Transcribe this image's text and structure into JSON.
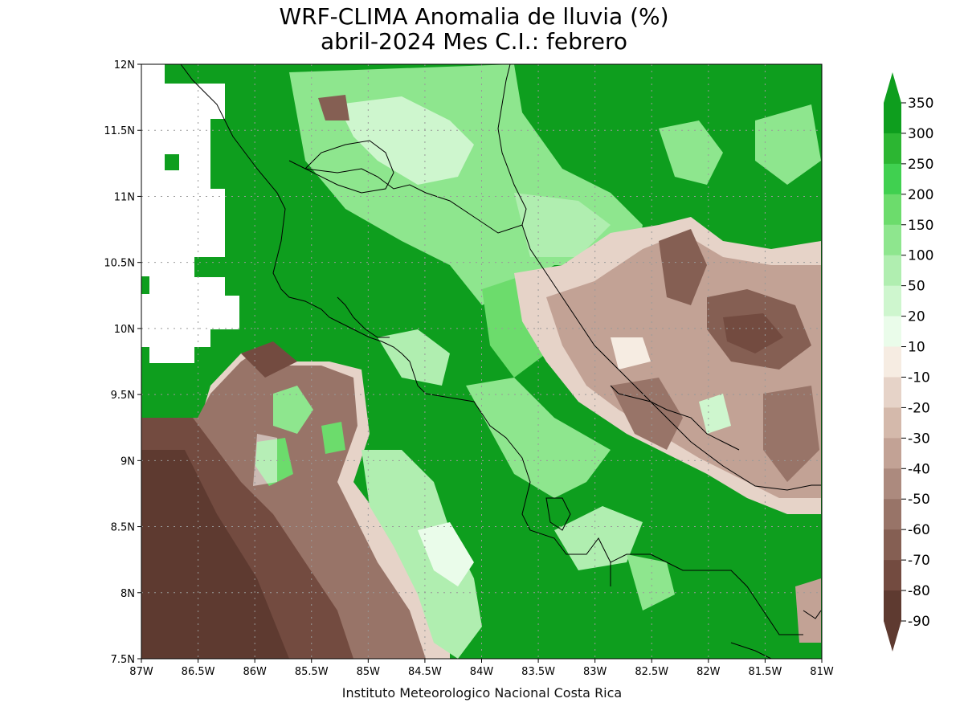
{
  "title": {
    "line1": "WRF-CLIMA Anomalia de lluvia (%)",
    "line2": "abril-2024 Mes C.I.: febrero"
  },
  "credit": "Instituto Meteorologico Nacional Costa Rica",
  "axes": {
    "x_ticks": [
      "87W",
      "86.5W",
      "86W",
      "85.5W",
      "85W",
      "84.5W",
      "84W",
      "83.5W",
      "83W",
      "82.5W",
      "82W",
      "81.5W",
      "81W"
    ],
    "y_ticks": [
      "12N",
      "11.5N",
      "11N",
      "10.5N",
      "10N",
      "9.5N",
      "9N",
      "8.5N",
      "8N",
      "7.5N"
    ],
    "lon_range": [
      -87,
      -81
    ],
    "lat_range": [
      7.5,
      12
    ],
    "grid": true
  },
  "legend": {
    "labels": [
      "350",
      "300",
      "250",
      "200",
      "150",
      "100",
      "50",
      "20",
      "10",
      "-10",
      "-20",
      "-30",
      "-40",
      "-50",
      "-60",
      "-70",
      "-80",
      "-90"
    ],
    "colors": [
      "#0e9e1e",
      "#2cb632",
      "#40d050",
      "#6cdc6c",
      "#8ee68e",
      "#b0eeb0",
      "#cef6ce",
      "#eafcea",
      "#ffffff",
      "#f6ece2",
      "#e6d3c8",
      "#d4b9ab",
      "#c2a295",
      "#ac8a7e",
      "#987468",
      "#855f53",
      "#734b40",
      "#5e3a30"
    ]
  },
  "colors": {
    "land_outline": "#000000",
    "grid": "#999999"
  }
}
